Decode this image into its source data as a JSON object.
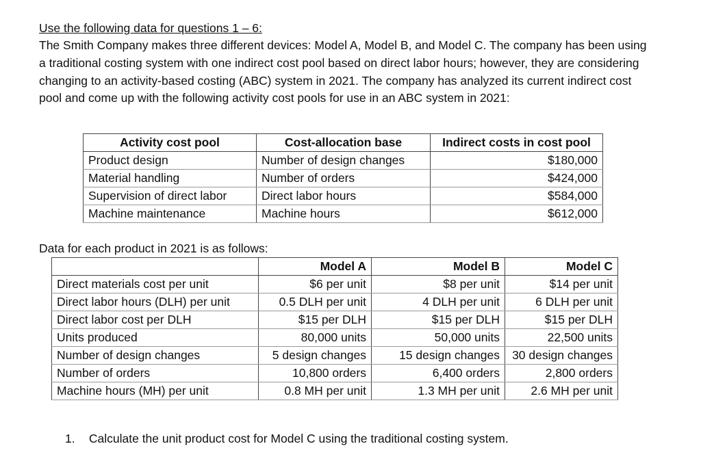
{
  "heading": "Use the following data for questions 1 – 6:",
  "intro_paragraph": "The Smith Company makes three different devices: Model A, Model B, and Model C. The company has been using a traditional costing system with one indirect cost pool based on direct labor hours; however, they are considering changing to an activity-based costing (ABC) system in 2021. The company has analyzed its current indirect cost pool and come up with the following activity cost pools for use in an ABC system in 2021:",
  "cost_pool_table": {
    "headers": [
      "Activity cost pool",
      "Cost-allocation base",
      "Indirect costs in cost pool"
    ],
    "rows": [
      [
        "Product design",
        "Number of design changes",
        "$180,000"
      ],
      [
        "Material handling",
        "Number of orders",
        "$424,000"
      ],
      [
        "Supervision of direct labor",
        "Direct labor hours",
        "$584,000"
      ],
      [
        "Machine maintenance",
        "Machine hours",
        "$612,000"
      ]
    ]
  },
  "product_data_label": "Data for each product in 2021 is as follows:",
  "product_table": {
    "headers": [
      "",
      "Model A",
      "Model B",
      "Model C"
    ],
    "rows": [
      [
        "Direct materials cost per unit",
        "$6 per unit",
        "$8 per unit",
        "$14 per unit"
      ],
      [
        "Direct labor hours (DLH) per unit",
        "0.5 DLH per unit",
        "4 DLH per unit",
        "6 DLH per unit"
      ],
      [
        "Direct labor cost per DLH",
        "$15 per DLH",
        "$15 per DLH",
        "$15 per DLH"
      ],
      [
        "Units produced",
        "80,000 units",
        "50,000 units",
        "22,500 units"
      ],
      [
        "Number of design changes",
        "5 design changes",
        "15 design changes",
        "30 design changes"
      ],
      [
        "Number of orders",
        "10,800 orders",
        "6,400 orders",
        "2,800 orders"
      ],
      [
        "Machine hours (MH) per unit",
        "0.8 MH per unit",
        "1.3 MH per unit",
        "2.6 MH per unit"
      ]
    ]
  },
  "questions": [
    {
      "number": "1.",
      "text": "Calculate the unit product cost for Model C using the traditional costing system."
    }
  ]
}
